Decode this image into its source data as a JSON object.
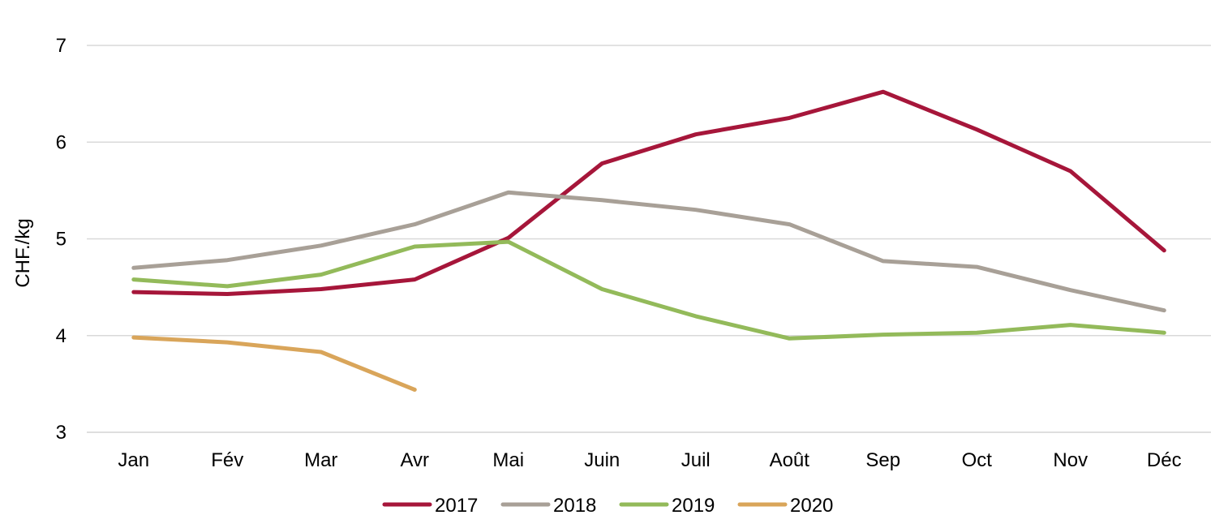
{
  "chart_data": {
    "type": "line",
    "title": "",
    "xlabel": "",
    "ylabel": "CHF./kg",
    "categories": [
      "Jan",
      "Fév",
      "Mar",
      "Avr",
      "Mai",
      "Juin",
      "Juil",
      "Août",
      "Sep",
      "Oct",
      "Nov",
      "Déc"
    ],
    "ylim": [
      3,
      7
    ],
    "yticks": [
      "3",
      "4",
      "5",
      "6",
      "7"
    ],
    "grid": true,
    "legend_position": "bottom",
    "series": [
      {
        "name": "2017",
        "color": "#A6163A",
        "values": [
          4.45,
          4.43,
          4.48,
          4.58,
          5.01,
          5.78,
          6.08,
          6.25,
          6.52,
          6.13,
          5.7,
          4.88
        ]
      },
      {
        "name": "2018",
        "color": "#A8A097",
        "values": [
          4.7,
          4.78,
          4.93,
          5.15,
          5.48,
          5.4,
          5.3,
          5.15,
          4.77,
          4.71,
          4.47,
          4.26
        ]
      },
      {
        "name": "2019",
        "color": "#93BA5A",
        "values": [
          4.58,
          4.51,
          4.63,
          4.92,
          4.97,
          4.48,
          4.2,
          3.97,
          4.01,
          4.03,
          4.11,
          4.03
        ]
      },
      {
        "name": "2020",
        "color": "#D9A55A",
        "values": [
          3.98,
          3.93,
          3.83,
          3.44,
          null,
          null,
          null,
          null,
          null,
          null,
          null,
          null
        ]
      }
    ]
  }
}
